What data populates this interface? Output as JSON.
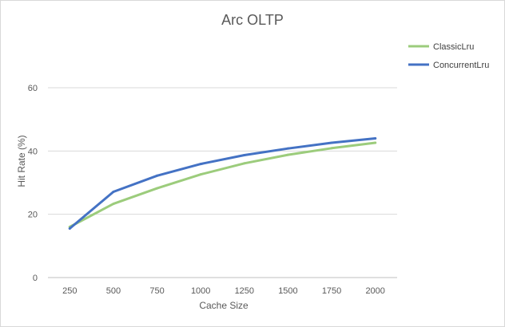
{
  "chart_data": {
    "type": "line",
    "title": "Arc OLTP",
    "xlabel": "Cache Size",
    "ylabel": "Hit Rate (%)",
    "categories": [
      "250",
      "500",
      "750",
      "1000",
      "1250",
      "1500",
      "1750",
      "2000"
    ],
    "ylim": [
      0,
      60
    ],
    "yticks": [
      0,
      20,
      40,
      60
    ],
    "y_tick_labels": [
      "0",
      "20",
      "40",
      "60"
    ],
    "grid": true,
    "legend_position": "top-right",
    "series": [
      {
        "name": "ClassicLru",
        "color": "#9ccc7c",
        "values": [
          16.0,
          23.3,
          28.2,
          32.6,
          36.1,
          38.8,
          40.9,
          42.6
        ]
      },
      {
        "name": "ConcurrentLru",
        "color": "#4472c4",
        "values": [
          15.5,
          27.1,
          32.2,
          35.9,
          38.7,
          40.8,
          42.6,
          44.0
        ]
      }
    ]
  }
}
